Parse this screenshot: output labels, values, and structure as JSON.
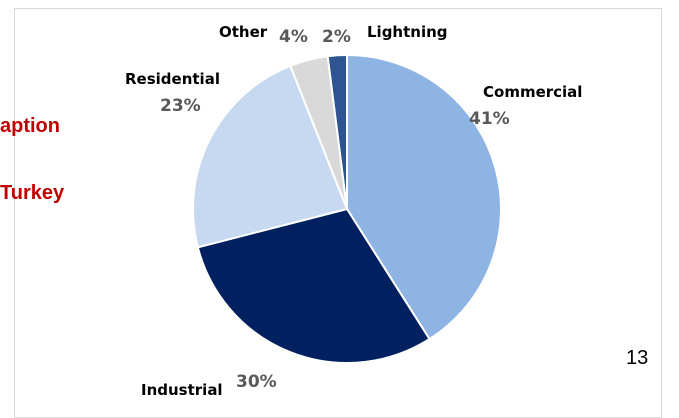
{
  "side_text": {
    "line1": "aption",
    "line2": "Turkey"
  },
  "page_number": "13",
  "chart_data": {
    "type": "pie",
    "start_angle_deg": 0,
    "direction": "clockwise",
    "slices": [
      {
        "name": "Commercial",
        "value": 41,
        "label": "41%",
        "color": "#8eb4e3"
      },
      {
        "name": "Industrial",
        "value": 30,
        "label": "30%",
        "color": "#002060"
      },
      {
        "name": "Residential",
        "value": 23,
        "label": "23%",
        "color": "#c6d9f1"
      },
      {
        "name": "Other",
        "value": 4,
        "label": "4%",
        "color": "#d9d9d9"
      },
      {
        "name": "Lightning",
        "value": 2,
        "label": "2%",
        "color": "#2e5592"
      }
    ]
  }
}
